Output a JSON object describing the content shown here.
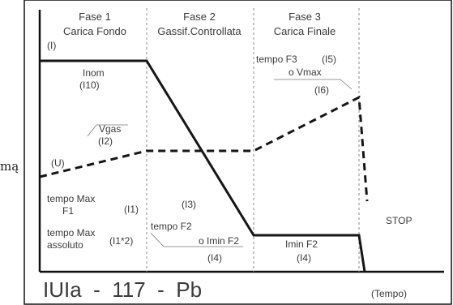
{
  "side_text": "mą",
  "phases": [
    {
      "title": "Fase 1",
      "subtitle": "Carica Fondo",
      "code": "(I)"
    },
    {
      "title": "Fase 2",
      "subtitle": "Gassif.Controllata"
    },
    {
      "title": "Fase 3",
      "subtitle": "Carica Finale"
    }
  ],
  "labels": {
    "inom": "Inom",
    "i10": "(I10)",
    "vgas": "Vgas",
    "i2": "(I2)",
    "u": "(U)",
    "tempo_f3": "tempo F3",
    "i5": "(I5)",
    "o_vmax": "o Vmax",
    "i6": "(I6)",
    "tempo_max": "tempo Max",
    "f1": "F1",
    "i1": "(I1)",
    "tempo_max2": "tempo Max",
    "assoluto": "assoluto",
    "i1x2": "(I1*2)",
    "i3": "(I3)",
    "tempo_f2": "tempo F2",
    "o_imin_f2": "o Imin F2",
    "i4a": "(I4)",
    "imin_f2": "Imin F2",
    "i4b": "(I4)",
    "stop": "STOP"
  },
  "footer": {
    "program": "IUIa  -  117  -  Pb",
    "axis": "(Tempo)"
  },
  "colors": {
    "line": "#161616",
    "text": "#3a3a3a",
    "divider": "#8a8a8a"
  }
}
